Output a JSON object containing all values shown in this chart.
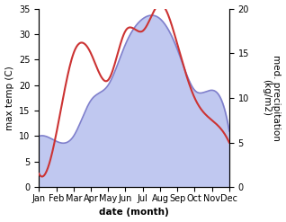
{
  "months": [
    "Jan",
    "Feb",
    "Mar",
    "Apr",
    "May",
    "Jun",
    "Jul",
    "Aug",
    "Sep",
    "Oct",
    "Nov",
    "Dec"
  ],
  "month_x": [
    0,
    1,
    2,
    3,
    4,
    5,
    6,
    7,
    8,
    9,
    10,
    11
  ],
  "temp": [
    10,
    9,
    10,
    17,
    20,
    28,
    33,
    33,
    27,
    19,
    19,
    11
  ],
  "precip": [
    1.5,
    6.0,
    15.0,
    15.0,
    12.0,
    17.5,
    17.5,
    20.5,
    16.0,
    10.0,
    7.5,
    5.0
  ],
  "temp_color": "#8080cc",
  "temp_fill_color": "#c0c8f0",
  "precip_color": "#cc3333",
  "temp_ylim": [
    0,
    35
  ],
  "precip_ylim": [
    0,
    20
  ],
  "temp_yticks": [
    0,
    5,
    10,
    15,
    20,
    25,
    30,
    35
  ],
  "precip_yticks": [
    0,
    5,
    10,
    15,
    20
  ],
  "ylabel_left": "max temp (C)",
  "ylabel_right": "med. precipitation\n(kg/m2)",
  "xlabel": "date (month)",
  "label_fontsize": 7.5,
  "tick_fontsize": 7.0
}
